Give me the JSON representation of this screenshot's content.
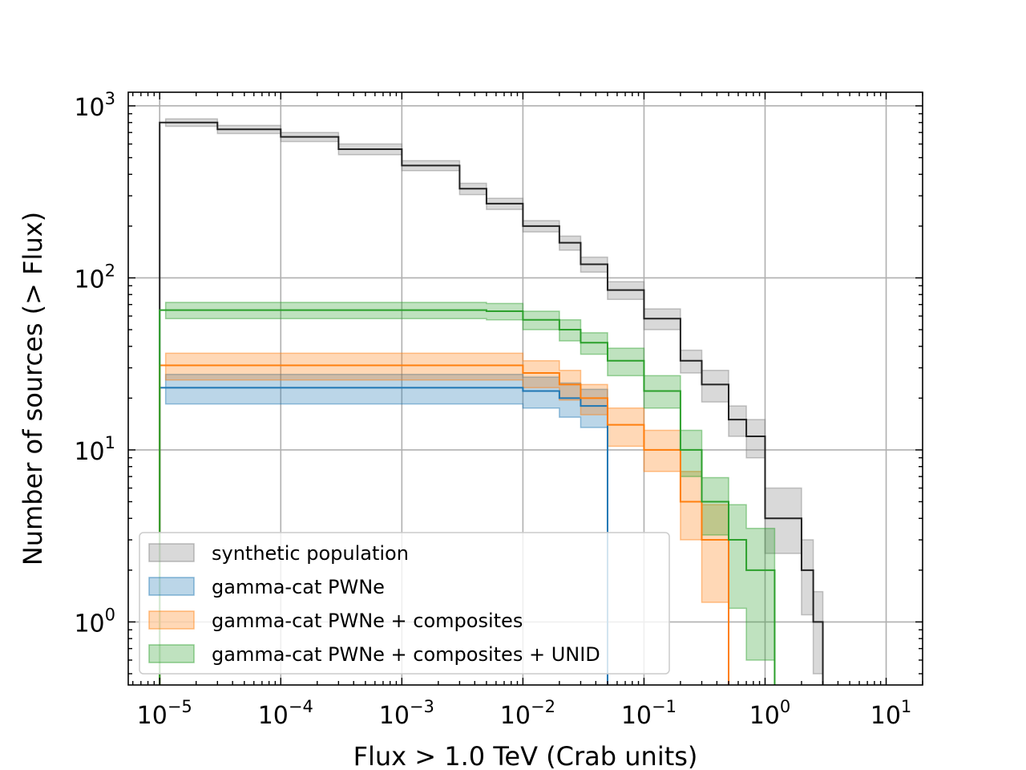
{
  "chart_data": {
    "type": "line",
    "xlabel": "Flux > 1.0 TeV (Crab units)",
    "ylabel": "Number of sources (> Flux)",
    "xscale": "log",
    "yscale": "log",
    "xlim": [
      5.5e-06,
      20
    ],
    "ylim": [
      0.43,
      1200
    ],
    "grid": true,
    "legend_position": "lower-left",
    "x_tick_labels": [
      {
        "value": 1e-05,
        "base": "10",
        "exp": "−5"
      },
      {
        "value": 0.0001,
        "base": "10",
        "exp": "−4"
      },
      {
        "value": 0.001,
        "base": "10",
        "exp": "−3"
      },
      {
        "value": 0.01,
        "base": "10",
        "exp": "−2"
      },
      {
        "value": 0.1,
        "base": "10",
        "exp": "−1"
      },
      {
        "value": 1,
        "base": "10",
        "exp": "0"
      },
      {
        "value": 10,
        "base": "10",
        "exp": "1"
      }
    ],
    "y_tick_labels": [
      {
        "value": 1,
        "base": "10",
        "exp": "0"
      },
      {
        "value": 10,
        "base": "10",
        "exp": "1"
      },
      {
        "value": 100,
        "base": "10",
        "exp": "2"
      },
      {
        "value": 1000,
        "base": "10",
        "exp": "3"
      }
    ],
    "series": [
      {
        "name": "synthetic population",
        "color": "#222222",
        "fill": "#808080",
        "x": [
          1e-05,
          3e-05,
          0.0001,
          0.0003,
          0.001,
          0.003,
          0.005,
          0.01,
          0.02,
          0.03,
          0.05,
          0.1,
          0.2,
          0.3,
          0.5,
          0.7,
          1.0,
          1.5,
          2.0,
          2.5,
          3.0
        ],
        "y": [
          800,
          730,
          660,
          560,
          450,
          330,
          270,
          200,
          160,
          120,
          85,
          58,
          33,
          24,
          15,
          12,
          4,
          4,
          2,
          1,
          1
        ],
        "band_low": [
          760,
          690,
          620,
          520,
          420,
          305,
          250,
          185,
          145,
          108,
          75,
          50,
          28,
          19,
          12,
          9,
          2.5,
          2.5,
          1.1,
          0.5,
          0.5
        ],
        "band_high": [
          840,
          770,
          700,
          600,
          480,
          355,
          290,
          215,
          175,
          132,
          95,
          66,
          38,
          29,
          18,
          15,
          6,
          6,
          3,
          1.5,
          1.5
        ]
      },
      {
        "name": "gamma-cat PWNe",
        "color": "#1f77b4",
        "fill": "#1f77b4",
        "x": [
          1e-05,
          0.003,
          0.005,
          0.01,
          0.02,
          0.03,
          0.05
        ],
        "y": [
          23,
          23,
          23,
          22,
          20,
          18,
          15
        ],
        "band_low": [
          18.5,
          18.5,
          18.5,
          17.5,
          15.5,
          13.5,
          11
        ],
        "band_high": [
          27.5,
          27.5,
          27.5,
          26.5,
          24.5,
          22.5,
          19
        ]
      },
      {
        "name": "gamma-cat PWNe + composites",
        "color": "#ff7f0e",
        "fill": "#ff7f0e",
        "x": [
          1e-05,
          0.003,
          0.005,
          0.01,
          0.02,
          0.03,
          0.05,
          0.1,
          0.2,
          0.3,
          0.5
        ],
        "y": [
          31,
          31,
          31,
          28,
          24,
          20,
          14,
          10,
          5,
          3,
          3
        ],
        "band_low": [
          25.5,
          25.5,
          25.5,
          23,
          19.5,
          16,
          10.5,
          7.5,
          3,
          1.3,
          1.3
        ],
        "band_high": [
          36.5,
          36.5,
          36.5,
          33,
          29,
          24,
          17.5,
          13,
          7.5,
          4.8,
          4.8
        ]
      },
      {
        "name": "gamma-cat PWNe + composites + UNID",
        "color": "#2ca02c",
        "fill": "#2ca02c",
        "x": [
          1e-05,
          0.003,
          0.005,
          0.01,
          0.02,
          0.03,
          0.05,
          0.1,
          0.2,
          0.3,
          0.5,
          0.7,
          1.0,
          1.2
        ],
        "y": [
          65,
          65,
          64,
          57,
          50,
          42,
          33,
          22,
          10,
          5,
          3,
          2,
          2,
          0.5
        ],
        "band_low": [
          58,
          58,
          57,
          50,
          43,
          36,
          27,
          17.5,
          7,
          3.2,
          1.2,
          0.6,
          0.6,
          0.43
        ],
        "band_high": [
          72,
          72,
          71,
          64,
          57,
          48,
          39,
          27,
          13,
          6.9,
          4.8,
          3.5,
          3.5,
          0.43
        ]
      }
    ]
  }
}
